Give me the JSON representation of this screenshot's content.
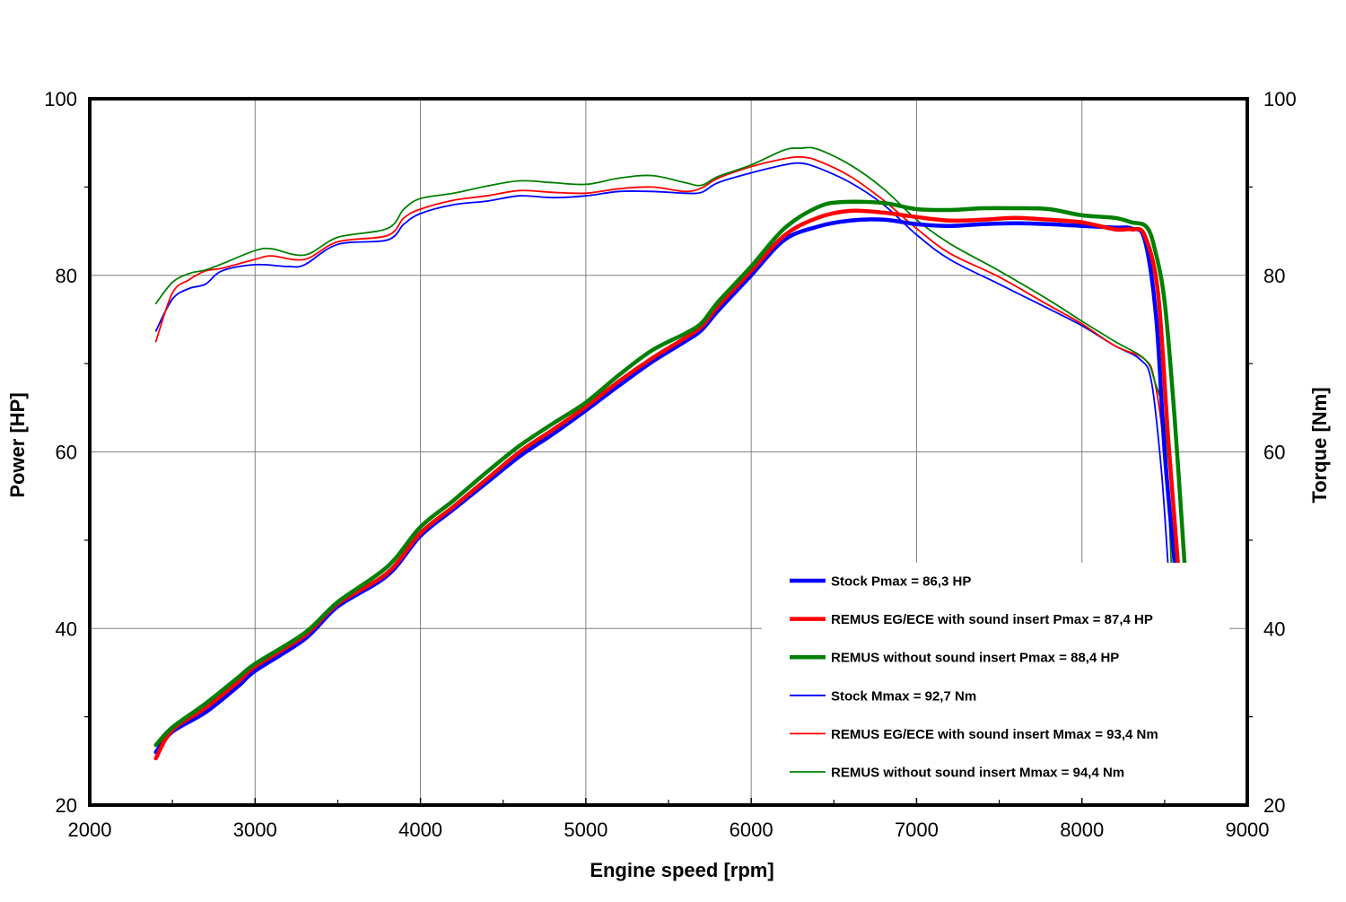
{
  "chart_data": {
    "type": "line",
    "xlabel": "Engine speed [rpm]",
    "ylabel": "Power [HP]",
    "y2label": "Torque [Nm]",
    "xlim": [
      2000,
      9000
    ],
    "ylim": [
      20,
      100
    ],
    "y2lim": [
      20,
      100
    ],
    "xticks": [
      "2000",
      "3000",
      "4000",
      "5000",
      "6000",
      "7000",
      "8000",
      "9000"
    ],
    "yticks": [
      "20",
      "40",
      "60",
      "80",
      "100"
    ],
    "y2ticks": [
      "20",
      "40",
      "60",
      "80",
      "100"
    ],
    "grid": true,
    "legend_position": "bottom-right",
    "series": [
      {
        "name": "Stock Pmax = 86,3 HP",
        "axis": "power",
        "color": "#0000ff",
        "weight": "thick",
        "points": [
          [
            2400,
            26
          ],
          [
            2500,
            28.3
          ],
          [
            2700,
            30.5
          ],
          [
            2900,
            33.5
          ],
          [
            3000,
            35.2
          ],
          [
            3300,
            38.8
          ],
          [
            3500,
            42.5
          ],
          [
            3800,
            46
          ],
          [
            4000,
            50.5
          ],
          [
            4200,
            53.5
          ],
          [
            4400,
            56.5
          ],
          [
            4600,
            59.5
          ],
          [
            4800,
            62
          ],
          [
            5000,
            64.7
          ],
          [
            5200,
            67.5
          ],
          [
            5400,
            70.2
          ],
          [
            5600,
            72.5
          ],
          [
            5700,
            73.8
          ],
          [
            5800,
            76
          ],
          [
            6000,
            80
          ],
          [
            6200,
            84
          ],
          [
            6400,
            85.5
          ],
          [
            6600,
            86.2
          ],
          [
            6800,
            86.3
          ],
          [
            7000,
            85.8
          ],
          [
            7200,
            85.6
          ],
          [
            7400,
            85.8
          ],
          [
            7600,
            85.9
          ],
          [
            7800,
            85.8
          ],
          [
            8000,
            85.6
          ],
          [
            8200,
            85.4
          ],
          [
            8300,
            85.3
          ],
          [
            8380,
            84
          ],
          [
            8450,
            75
          ],
          [
            8500,
            60
          ],
          [
            8560,
            47.5
          ]
        ]
      },
      {
        "name": "REMUS EG/ECE with sound insert Pmax = 87,4 HP",
        "axis": "power",
        "color": "#ff0000",
        "weight": "thick",
        "points": [
          [
            2400,
            25.3
          ],
          [
            2500,
            28.5
          ],
          [
            2700,
            31
          ],
          [
            2900,
            34
          ],
          [
            3000,
            35.7
          ],
          [
            3300,
            39.2
          ],
          [
            3500,
            42.8
          ],
          [
            3800,
            46.3
          ],
          [
            4000,
            50.8
          ],
          [
            4200,
            53.8
          ],
          [
            4400,
            56.9
          ],
          [
            4600,
            60
          ],
          [
            4800,
            62.5
          ],
          [
            5000,
            65.1
          ],
          [
            5200,
            68
          ],
          [
            5400,
            70.6
          ],
          [
            5600,
            72.9
          ],
          [
            5700,
            74.2
          ],
          [
            5800,
            76.5
          ],
          [
            6000,
            80.5
          ],
          [
            6200,
            84.5
          ],
          [
            6400,
            86.5
          ],
          [
            6600,
            87.3
          ],
          [
            6800,
            87.1
          ],
          [
            7000,
            86.6
          ],
          [
            7200,
            86.2
          ],
          [
            7400,
            86.3
          ],
          [
            7600,
            86.5
          ],
          [
            7800,
            86.3
          ],
          [
            8000,
            86
          ],
          [
            8200,
            85.2
          ],
          [
            8300,
            85.2
          ],
          [
            8380,
            84.5
          ],
          [
            8460,
            78
          ],
          [
            8520,
            62
          ],
          [
            8580,
            47.5
          ]
        ]
      },
      {
        "name": "REMUS without sound insert Pmax = 88,4 HP",
        "axis": "power",
        "color": "#008000",
        "weight": "thick",
        "points": [
          [
            2400,
            26.8
          ],
          [
            2500,
            28.8
          ],
          [
            2700,
            31.5
          ],
          [
            2900,
            34.5
          ],
          [
            3000,
            36
          ],
          [
            3300,
            39.5
          ],
          [
            3500,
            43
          ],
          [
            3800,
            47
          ],
          [
            4000,
            51.5
          ],
          [
            4200,
            54.5
          ],
          [
            4400,
            57.7
          ],
          [
            4600,
            60.7
          ],
          [
            4800,
            63.2
          ],
          [
            5000,
            65.6
          ],
          [
            5200,
            68.7
          ],
          [
            5400,
            71.5
          ],
          [
            5600,
            73.4
          ],
          [
            5700,
            74.6
          ],
          [
            5800,
            77
          ],
          [
            6000,
            81
          ],
          [
            6200,
            85.3
          ],
          [
            6400,
            87.7
          ],
          [
            6550,
            88.3
          ],
          [
            6800,
            88.2
          ],
          [
            7000,
            87.5
          ],
          [
            7200,
            87.4
          ],
          [
            7400,
            87.6
          ],
          [
            7600,
            87.6
          ],
          [
            7800,
            87.5
          ],
          [
            8000,
            86.8
          ],
          [
            8200,
            86.5
          ],
          [
            8300,
            86
          ],
          [
            8390,
            85.5
          ],
          [
            8440,
            83
          ],
          [
            8500,
            77
          ],
          [
            8560,
            64
          ],
          [
            8620,
            47.5
          ]
        ]
      },
      {
        "name": "Stock Mmax = 92,7 Nm",
        "axis": "torque",
        "color": "#0000ff",
        "weight": "thin",
        "points": [
          [
            2400,
            73.7
          ],
          [
            2500,
            77.3
          ],
          [
            2600,
            78.5
          ],
          [
            2700,
            79
          ],
          [
            2800,
            80.5
          ],
          [
            3000,
            81.2
          ],
          [
            3200,
            81
          ],
          [
            3300,
            81.2
          ],
          [
            3500,
            83.5
          ],
          [
            3800,
            84
          ],
          [
            3900,
            85.8
          ],
          [
            4000,
            87
          ],
          [
            4200,
            88
          ],
          [
            4400,
            88.4
          ],
          [
            4600,
            89
          ],
          [
            4800,
            88.8
          ],
          [
            5000,
            89
          ],
          [
            5200,
            89.5
          ],
          [
            5400,
            89.5
          ],
          [
            5600,
            89.3
          ],
          [
            5700,
            89.4
          ],
          [
            5800,
            90.5
          ],
          [
            6000,
            91.6
          ],
          [
            6200,
            92.5
          ],
          [
            6300,
            92.7
          ],
          [
            6400,
            92.2
          ],
          [
            6600,
            90.5
          ],
          [
            6800,
            88
          ],
          [
            7000,
            84.6
          ],
          [
            7200,
            81.8
          ],
          [
            7500,
            79
          ],
          [
            7800,
            76.2
          ],
          [
            8000,
            74.3
          ],
          [
            8200,
            72
          ],
          [
            8350,
            70.5
          ],
          [
            8420,
            68
          ],
          [
            8480,
            58
          ],
          [
            8520,
            47.5
          ]
        ]
      },
      {
        "name": "REMUS EG/ECE with sound insert Mmax = 93,4 Nm",
        "axis": "torque",
        "color": "#ff0000",
        "weight": "thin",
        "points": [
          [
            2400,
            72.5
          ],
          [
            2500,
            78
          ],
          [
            2600,
            79.5
          ],
          [
            2700,
            80.5
          ],
          [
            2800,
            80.8
          ],
          [
            3000,
            81.8
          ],
          [
            3100,
            82.2
          ],
          [
            3300,
            81.8
          ],
          [
            3500,
            83.8
          ],
          [
            3800,
            84.5
          ],
          [
            3900,
            86.5
          ],
          [
            4000,
            87.5
          ],
          [
            4200,
            88.5
          ],
          [
            4400,
            89
          ],
          [
            4600,
            89.6
          ],
          [
            4800,
            89.4
          ],
          [
            5000,
            89.3
          ],
          [
            5200,
            89.8
          ],
          [
            5400,
            90
          ],
          [
            5600,
            89.5
          ],
          [
            5700,
            89.9
          ],
          [
            5800,
            91
          ],
          [
            6000,
            92.3
          ],
          [
            6200,
            93.2
          ],
          [
            6300,
            93.4
          ],
          [
            6400,
            93
          ],
          [
            6600,
            91.2
          ],
          [
            6800,
            88.5
          ],
          [
            7000,
            85.3
          ],
          [
            7200,
            82.5
          ],
          [
            7500,
            79.8
          ],
          [
            7800,
            76.6
          ],
          [
            8000,
            74.5
          ],
          [
            8200,
            72
          ],
          [
            8380,
            70.5
          ],
          [
            8440,
            68
          ],
          [
            8500,
            60
          ],
          [
            8560,
            47.5
          ]
        ]
      },
      {
        "name": "REMUS without sound insert Mmax = 94,4 Nm",
        "axis": "torque",
        "color": "#008000",
        "weight": "thin",
        "points": [
          [
            2400,
            76.8
          ],
          [
            2500,
            79.2
          ],
          [
            2600,
            80.2
          ],
          [
            2700,
            80.6
          ],
          [
            2800,
            81.3
          ],
          [
            3000,
            82.8
          ],
          [
            3100,
            83
          ],
          [
            3300,
            82.3
          ],
          [
            3500,
            84.3
          ],
          [
            3800,
            85.3
          ],
          [
            3900,
            87.5
          ],
          [
            4000,
            88.7
          ],
          [
            4200,
            89.3
          ],
          [
            4400,
            90.1
          ],
          [
            4600,
            90.7
          ],
          [
            4800,
            90.5
          ],
          [
            5000,
            90.3
          ],
          [
            5200,
            91
          ],
          [
            5400,
            91.3
          ],
          [
            5600,
            90.5
          ],
          [
            5700,
            90.2
          ],
          [
            5800,
            91.2
          ],
          [
            6000,
            92.5
          ],
          [
            6200,
            94.2
          ],
          [
            6300,
            94.4
          ],
          [
            6400,
            94.3
          ],
          [
            6600,
            92.5
          ],
          [
            6800,
            89.8
          ],
          [
            7000,
            86.3
          ],
          [
            7200,
            83.6
          ],
          [
            7500,
            80.5
          ],
          [
            7800,
            77.2
          ],
          [
            8000,
            74.8
          ],
          [
            8200,
            72.5
          ],
          [
            8380,
            70.5
          ],
          [
            8440,
            68
          ],
          [
            8500,
            63
          ],
          [
            8540,
            47.5
          ]
        ]
      }
    ]
  }
}
